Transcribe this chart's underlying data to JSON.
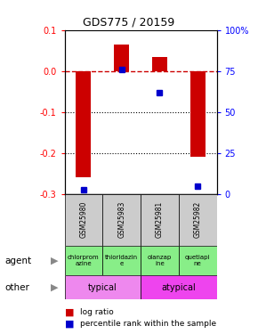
{
  "title": "GDS775 / 20159",
  "samples": [
    "GSM25980",
    "GSM25983",
    "GSM25981",
    "GSM25982"
  ],
  "log_ratios": [
    -0.26,
    0.065,
    0.035,
    -0.21
  ],
  "percentile_ranks": [
    2.5,
    76,
    62,
    4.5
  ],
  "left_ylim": [
    -0.3,
    0.1
  ],
  "right_ylim": [
    0,
    100
  ],
  "left_yticks": [
    -0.3,
    -0.2,
    -0.1,
    0.0,
    0.1
  ],
  "right_yticks": [
    0,
    25,
    50,
    75,
    100
  ],
  "right_yticklabels": [
    "0",
    "25",
    "50",
    "75",
    "100%"
  ],
  "bar_color": "#cc0000",
  "point_color": "#0000cc",
  "dashed_line_color": "#cc0000",
  "dotted_line_color": "#000000",
  "agent_labels": [
    "chlorprom\nazine",
    "thioridazin\ne",
    "olanzap\nine",
    "quetiapi\nne"
  ],
  "agent_color": "#88ee88",
  "typical_color": "#ee88ee",
  "atypical_color": "#ee44ee",
  "gsm_bg": "#cccccc",
  "bar_width": 0.4
}
